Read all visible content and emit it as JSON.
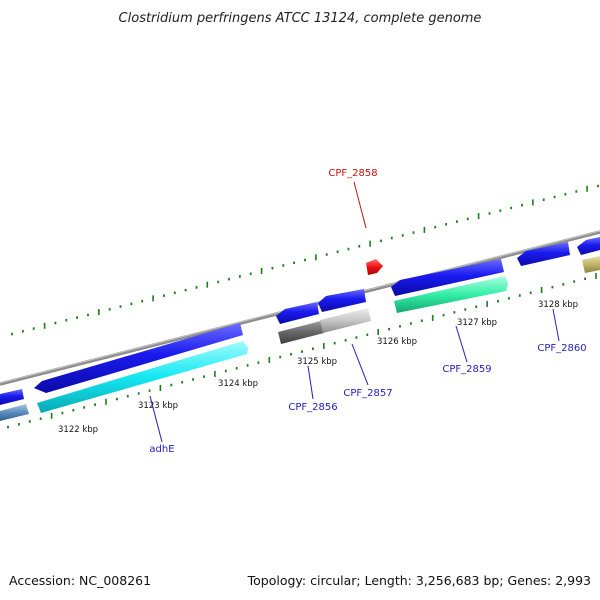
{
  "title": "Clostridium perfringens ATCC 13124, complete genome",
  "footer": {
    "accession": "Accession: NC_008261",
    "summary": "Topology: circular; Length: 3,256,683 bp; Genes: 2,993"
  },
  "colors": {
    "backbone": "#8c8c8c",
    "tick": "#1c7c1c",
    "label_blue": "#1f1fbf",
    "label_red": "#cc1111"
  },
  "kbp_labels": [
    "3122 kbp",
    "3123 kbp",
    "3124 kbp",
    "3125 kbp",
    "3126 kbp",
    "3127 kbp",
    "3128 kbp"
  ],
  "gene_labels": [
    {
      "text": "adhE",
      "color": "#1f1fbf"
    },
    {
      "text": "CPF_2856",
      "color": "#1f1fbf"
    },
    {
      "text": "CPF_2857",
      "color": "#1f1fbf"
    },
    {
      "text": "CPF_2858",
      "color": "#cc1111"
    },
    {
      "text": "CPF_2859",
      "color": "#1f1fbf"
    },
    {
      "text": "CPF_2860",
      "color": "#1f1fbf"
    }
  ]
}
